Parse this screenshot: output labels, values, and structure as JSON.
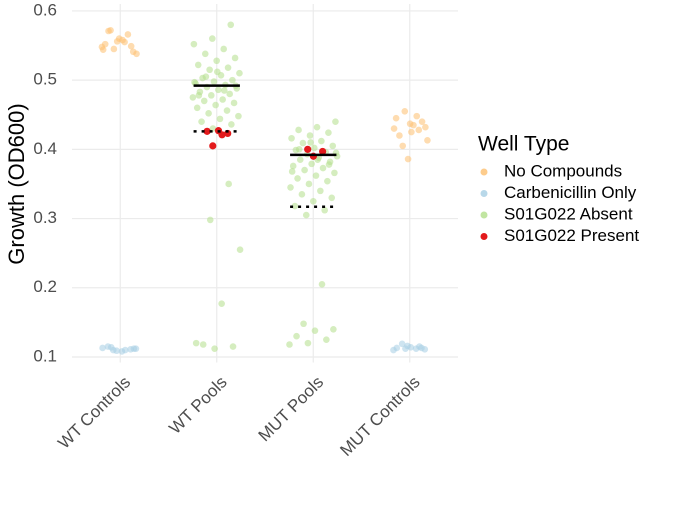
{
  "chart_data": {
    "type": "strip",
    "y_label": "Growth (OD600)",
    "legend_title": "Well Type",
    "categories": [
      "WT Controls",
      "WT Pools",
      "MUT Pools",
      "MUT Controls"
    ],
    "ylim": [
      0.092,
      0.61
    ],
    "yticks": [
      0.1,
      0.2,
      0.3,
      0.4,
      0.5,
      0.6
    ],
    "grid": true,
    "series": [
      {
        "name": "No Compounds",
        "color": "#fdbf6f",
        "values": [
          [
            0.548,
            0.555,
            0.572,
            0.541,
            0.56,
            0.552,
            0.566,
            0.545,
            0.538,
            0.558,
            0.571,
            0.549,
            0.556,
            0.544
          ],
          [],
          [],
          [
            0.437,
            0.445,
            0.428,
            0.455,
            0.413,
            0.435,
            0.42,
            0.44,
            0.386,
            0.43,
            0.448,
            0.405,
            0.432,
            0.425
          ]
        ]
      },
      {
        "name": "Carbenicillin Only",
        "color": "#a6cee3",
        "values": [
          [
            0.11,
            0.112,
            0.108,
            0.115,
            0.111,
            0.109,
            0.113,
            0.11,
            0.114,
            0.112
          ],
          [],
          [],
          [
            0.113,
            0.116,
            0.11,
            0.112,
            0.119,
            0.111,
            0.114,
            0.113,
            0.115,
            0.112
          ]
        ]
      },
      {
        "name": "S01G022 Absent",
        "color": "#b2df8a",
        "values": [
          [],
          [
            0.58,
            0.56,
            0.552,
            0.545,
            0.538,
            0.532,
            0.528,
            0.522,
            0.518,
            0.515,
            0.51,
            0.507,
            0.503,
            0.5,
            0.498,
            0.495,
            0.493,
            0.49,
            0.488,
            0.486,
            0.483,
            0.48,
            0.478,
            0.475,
            0.472,
            0.47,
            0.467,
            0.464,
            0.46,
            0.456,
            0.452,
            0.448,
            0.444,
            0.44,
            0.436,
            0.43,
            0.497,
            0.485,
            0.505,
            0.492,
            0.512,
            0.478,
            0.35,
            0.298,
            0.255,
            0.177,
            0.118,
            0.115,
            0.112,
            0.12
          ],
          [
            0.44,
            0.432,
            0.428,
            0.424,
            0.42,
            0.416,
            0.412,
            0.409,
            0.405,
            0.402,
            0.399,
            0.396,
            0.393,
            0.39,
            0.388,
            0.385,
            0.382,
            0.379,
            0.376,
            0.373,
            0.37,
            0.366,
            0.362,
            0.358,
            0.354,
            0.35,
            0.345,
            0.34,
            0.335,
            0.33,
            0.325,
            0.318,
            0.312,
            0.305,
            0.395,
            0.385,
            0.4,
            0.378,
            0.41,
            0.368,
            0.205,
            0.148,
            0.14,
            0.138,
            0.13,
            0.125,
            0.12,
            0.118
          ],
          []
        ]
      },
      {
        "name": "S01G022 Present",
        "color": "#e31a1c",
        "values": [
          [],
          [
            0.426,
            0.421,
            0.405,
            0.423,
            0.427
          ],
          [
            0.4,
            0.397,
            0.39
          ],
          []
        ]
      }
    ],
    "solid_lines": [
      null,
      0.492,
      0.392,
      null
    ],
    "dotted_lines": [
      null,
      0.426,
      0.317,
      null
    ]
  }
}
